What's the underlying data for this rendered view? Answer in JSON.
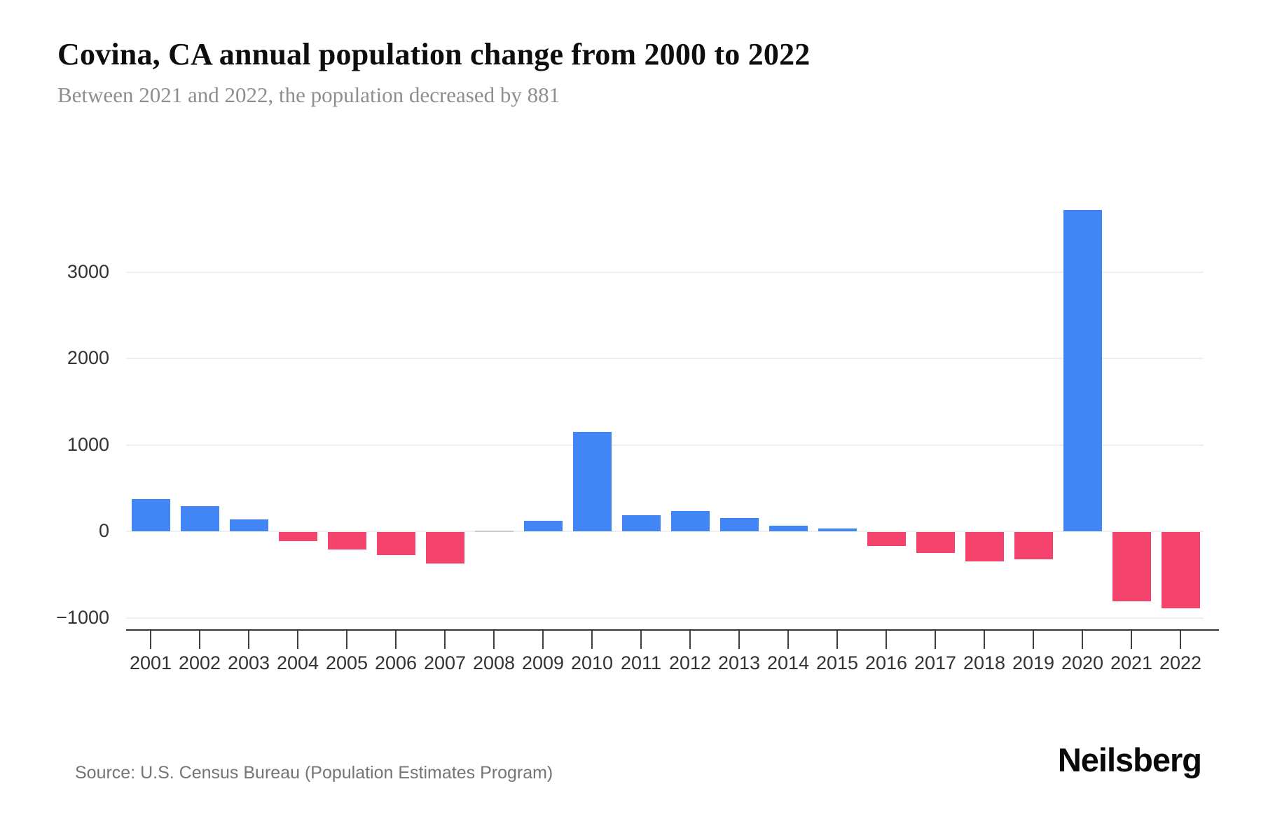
{
  "header": {
    "title": "Covina, CA annual population change from 2000 to 2022",
    "subtitle": "Between 2021 and 2022, the population decreased by 881"
  },
  "chart_data": {
    "type": "bar",
    "title": "Covina, CA annual population change from 2000 to 2022",
    "subtitle": "Between 2021 and 2022, the population decreased by 881",
    "xlabel": "",
    "ylabel": "",
    "categories": [
      2001,
      2002,
      2003,
      2004,
      2005,
      2006,
      2007,
      2008,
      2009,
      2010,
      2011,
      2012,
      2013,
      2014,
      2015,
      2016,
      2017,
      2018,
      2019,
      2020,
      2021,
      2022
    ],
    "values": [
      370,
      295,
      140,
      -105,
      -205,
      -265,
      -365,
      0,
      120,
      1150,
      190,
      235,
      155,
      65,
      30,
      -160,
      -245,
      -340,
      -315,
      3720,
      -800,
      -881
    ],
    "yticks": [
      -1000,
      0,
      1000,
      2000,
      3000
    ],
    "ytick_labels": [
      "−1000",
      "0",
      "1000",
      "2000",
      "3000"
    ],
    "ylim": [
      -1000,
      3800
    ],
    "grid": true,
    "legend": "none",
    "colors": {
      "positive": "#4285f4",
      "negative": "#f4436c",
      "zero": "#cccccc"
    }
  },
  "footer": {
    "source": "Source: U.S. Census Bureau (Population Estimates Program)",
    "brand": "Neilsberg"
  }
}
